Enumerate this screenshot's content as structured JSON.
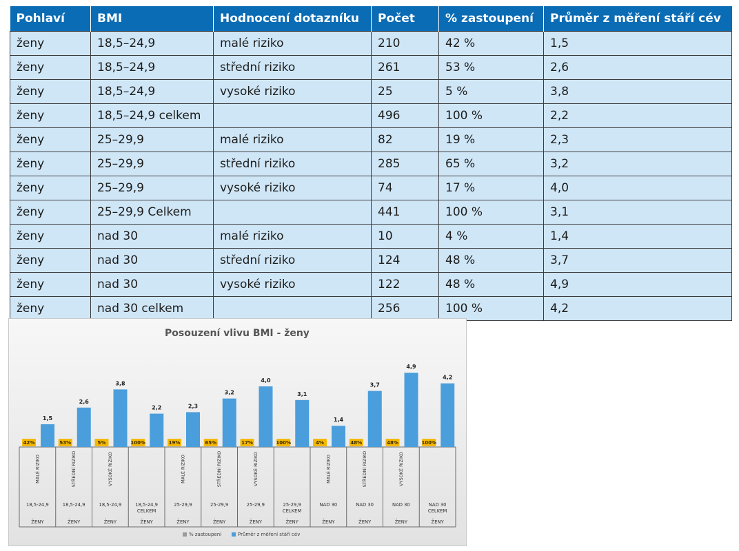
{
  "table": {
    "headers": [
      "Pohlaví",
      "BMI",
      "Hodnocení dotazníku",
      "Počet",
      "% zastoupení",
      "Průměr z měření stáří cév"
    ],
    "rows": [
      [
        "ženy",
        "18,5–24,9",
        "malé riziko",
        "210",
        "42 %",
        "1,5"
      ],
      [
        "ženy",
        "18,5–24,9",
        "střední riziko",
        "261",
        "53 %",
        "2,6"
      ],
      [
        "ženy",
        "18,5–24,9",
        "vysoké riziko",
        "25",
        "5 %",
        "3,8"
      ],
      [
        "ženy",
        "18,5–24,9 celkem",
        "",
        "496",
        "100 %",
        "2,2"
      ],
      [
        "ženy",
        "25–29,9",
        "malé riziko",
        "82",
        "19 %",
        "2,3"
      ],
      [
        "ženy",
        "25–29,9",
        "střední riziko",
        "285",
        "65 %",
        "3,2"
      ],
      [
        "ženy",
        "25–29,9",
        "vysoké riziko",
        "74",
        "17 %",
        "4,0"
      ],
      [
        "ženy",
        "25–29,9 Celkem",
        "",
        "441",
        "100 %",
        "3,1"
      ],
      [
        "ženy",
        "nad 30",
        "malé riziko",
        "10",
        "4 %",
        "1,4"
      ],
      [
        "ženy",
        "nad 30",
        "střední riziko",
        "124",
        "48 %",
        "3,7"
      ],
      [
        "ženy",
        "nad 30",
        "vysoké riziko",
        "122",
        "48 %",
        "4,9"
      ],
      [
        "ženy",
        "nad 30 celkem",
        "",
        "256",
        "100 %",
        "4,2"
      ]
    ]
  },
  "chart_data": {
    "type": "bar",
    "title": "Posouzení vlivu BMI - ženy",
    "categories": [
      {
        "risk": "MALÉ RIZIKO",
        "bmi": "18,5-24,9",
        "sex": "ŽENY"
      },
      {
        "risk": "STŘEDNÍ RIZIKO",
        "bmi": "18,5-24,9",
        "sex": "ŽENY"
      },
      {
        "risk": "VYSOKÉ RIZIKO",
        "bmi": "18,5-24,9",
        "sex": "ŽENY"
      },
      {
        "risk": "",
        "bmi": "18,5-24,9 CELKEM",
        "sex": "ŽENY"
      },
      {
        "risk": "MALÉ RIZIKO",
        "bmi": "25-29,9",
        "sex": "ŽENY"
      },
      {
        "risk": "STŘEDNÍ RIZIKO",
        "bmi": "25-29,9",
        "sex": "ŽENY"
      },
      {
        "risk": "VYSOKÉ RIZIKO",
        "bmi": "25-29,9",
        "sex": "ŽENY"
      },
      {
        "risk": "",
        "bmi": "25-29,9 CELKEM",
        "sex": "ŽENY"
      },
      {
        "risk": "MALÉ RIZIKO",
        "bmi": "NAD 30",
        "sex": "ŽENY"
      },
      {
        "risk": "STŘEDNÍ RIZIKO",
        "bmi": "NAD 30",
        "sex": "ŽENY"
      },
      {
        "risk": "VYSOKÉ RIZIKO",
        "bmi": "NAD 30",
        "sex": "ŽENY"
      },
      {
        "risk": "",
        "bmi": "NAD 30 CELKEM",
        "sex": "ŽENY"
      }
    ],
    "series": [
      {
        "name": "% zastoupení",
        "values": [
          0.42,
          0.53,
          0.05,
          1.0,
          0.19,
          0.65,
          0.17,
          1.0,
          0.04,
          0.48,
          0.48,
          1.0
        ],
        "labels": [
          "42%",
          "53%",
          "5%",
          "100%",
          "19%",
          "65%",
          "17%",
          "100%",
          "4%",
          "48%",
          "48%",
          "100%"
        ],
        "color": "#f5b800"
      },
      {
        "name": "Průměr z měření stáří cév",
        "values": [
          1.5,
          2.6,
          3.8,
          2.2,
          2.3,
          3.2,
          4.0,
          3.1,
          1.4,
          3.7,
          4.9,
          4.2
        ],
        "labels": [
          "1,5",
          "2,6",
          "3,8",
          "2,2",
          "2,3",
          "3,2",
          "4,0",
          "3,1",
          "1,4",
          "3,7",
          "4,9",
          "4,2"
        ],
        "color": "#4a9edb"
      }
    ],
    "legend_position": "bottom",
    "grid": false
  }
}
